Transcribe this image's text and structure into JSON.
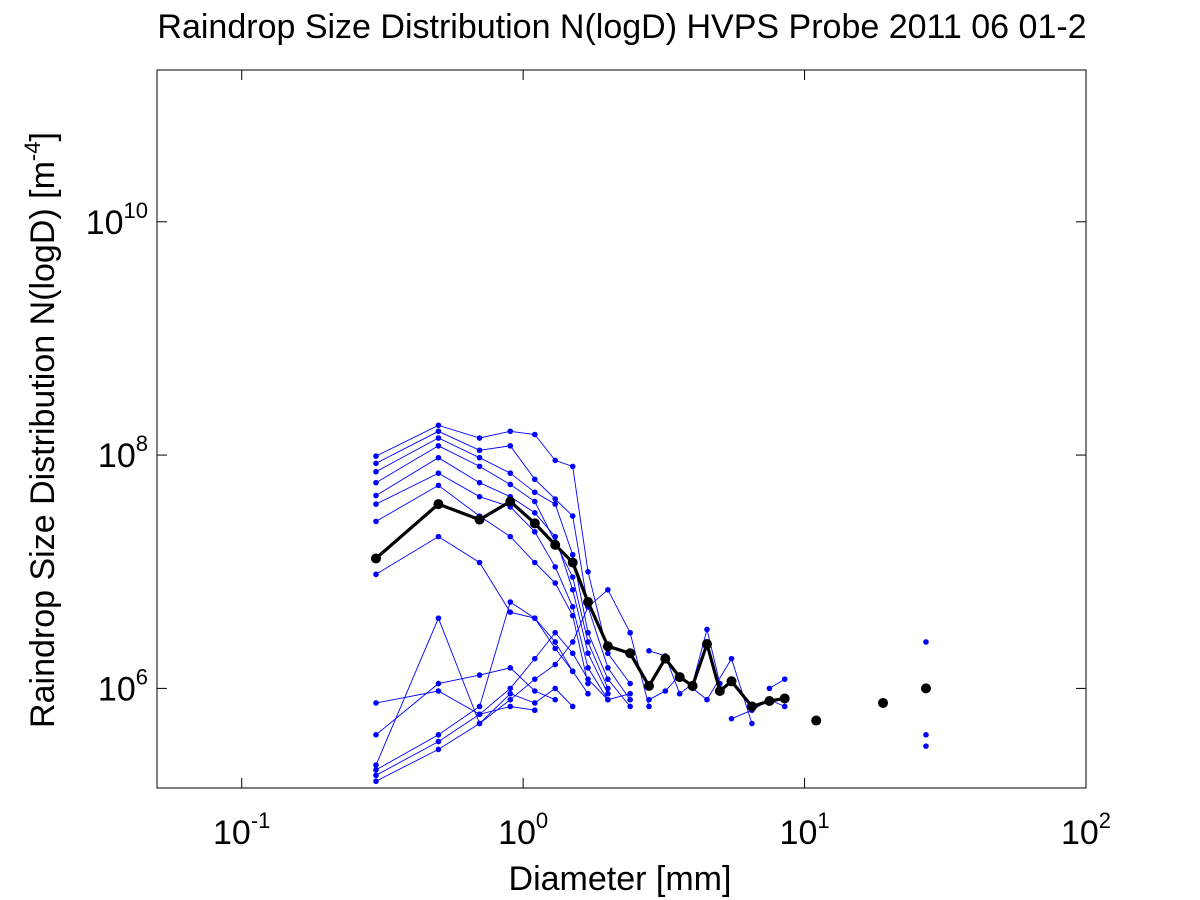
{
  "chart_data": {
    "type": "scatter",
    "title": "Raindrop Size Distribution N(logD) HVPS Probe 2011 06 01-2",
    "xlabel": "Diameter [mm]",
    "ylabel_main": "Raindrop Size Distribution N(logD) [m",
    "ylabel_sup": "-4",
    "ylabel_tail": "]",
    "x_scale": "log",
    "y_scale": "log",
    "xlim": [
      0.05,
      100
    ],
    "ylim": [
      140000,
      200000000000
    ],
    "x_ticks": [
      0.1,
      1,
      10,
      100
    ],
    "x_tick_labels": [
      {
        "base": "10",
        "exp": "-1"
      },
      {
        "base": "10",
        "exp": "0"
      },
      {
        "base": "10",
        "exp": "1"
      },
      {
        "base": "10",
        "exp": "2"
      }
    ],
    "y_ticks": [
      1000000,
      100000000,
      10000000000
    ],
    "y_tick_labels": [
      {
        "base": "10",
        "exp": "6"
      },
      {
        "base": "10",
        "exp": "8"
      },
      {
        "base": "10",
        "exp": "10"
      }
    ],
    "grid": false,
    "legend": "none",
    "colors": {
      "samples": "#0000ff",
      "mean": "#000000"
    },
    "series": [
      {
        "x": [
          0.3,
          0.5,
          0.7,
          0.9,
          1.1,
          1.3,
          1.5,
          1.7,
          2.0,
          2.4
        ],
        "y": [
          98000000,
          180000000,
          140000000,
          160000000,
          150000000,
          90000000,
          80000000,
          10000000,
          2000000,
          1100000
        ]
      },
      {
        "x": [
          0.3,
          0.5,
          0.7,
          0.9,
          1.1,
          1.3,
          1.5,
          1.7,
          2.0,
          2.4
        ],
        "y": [
          85000000,
          160000000,
          110000000,
          120000000,
          62000000,
          42000000,
          30000000,
          5000000,
          1500000,
          800000
        ]
      },
      {
        "x": [
          0.3,
          0.5,
          0.7,
          0.9,
          1.1,
          1.3,
          1.5,
          1.7,
          2.0,
          2.4
        ],
        "y": [
          72000000,
          140000000,
          95000000,
          70000000,
          48000000,
          38000000,
          14000000,
          3000000,
          1200000,
          700000
        ]
      },
      {
        "x": [
          0.3,
          0.5,
          0.7,
          0.9,
          1.1,
          1.3,
          1.5,
          1.7,
          2.0
        ],
        "y": [
          58000000,
          120000000,
          80000000,
          56000000,
          40000000,
          18000000,
          9000000,
          2500000,
          1000000
        ]
      },
      {
        "x": [
          0.3,
          0.5,
          0.7,
          0.9,
          1.1,
          1.3,
          1.5,
          1.7,
          2.0
        ],
        "y": [
          45000000,
          95000000,
          58000000,
          44000000,
          32000000,
          20000000,
          7000000,
          2000000,
          900000
        ]
      },
      {
        "x": [
          0.3,
          0.5,
          0.7,
          0.9,
          1.1,
          1.3,
          1.5,
          1.7,
          2.0
        ],
        "y": [
          38000000,
          70000000,
          44000000,
          36000000,
          22000000,
          11000000,
          5000000,
          1500000,
          800000
        ]
      },
      {
        "x": [
          0.3,
          0.5,
          0.7,
          0.9,
          1.1,
          1.3,
          1.5,
          1.7
        ],
        "y": [
          27000000,
          55000000,
          30000000,
          20000000,
          12000000,
          8000000,
          4200000,
          1100000
        ]
      },
      {
        "x": [
          0.3,
          0.5,
          0.7,
          0.9,
          1.1,
          1.3,
          1.5
        ],
        "y": [
          9500000,
          20000000,
          12000000,
          4500000,
          4000000,
          2200000,
          1400000
        ]
      },
      {
        "x": [
          0.3,
          0.5,
          0.7,
          0.9,
          1.1,
          1.3,
          1.5,
          1.7,
          2.0,
          2.4,
          2.8
        ],
        "y": [
          160000,
          300000,
          500000,
          800000,
          1200000,
          1600000,
          2500000,
          5000000,
          7000000,
          3000000,
          700000
        ]
      },
      {
        "x": [
          0.3,
          0.5,
          0.7,
          0.9,
          1.1,
          1.3,
          1.5,
          1.7,
          2.0,
          2.4
        ],
        "y": [
          180000,
          350000,
          600000,
          1000000,
          1800000,
          3000000,
          2000000,
          1200000,
          800000,
          900000
        ]
      },
      {
        "x": [
          0.3,
          0.5,
          0.7,
          0.9,
          1.1,
          1.3,
          1.5,
          1.7
        ],
        "y": [
          200000,
          400000,
          700000,
          5500000,
          4000000,
          2500000,
          1400000,
          900000
        ]
      },
      {
        "x": [
          0.3,
          0.5,
          0.7,
          0.9,
          1.1,
          1.3,
          1.5
        ],
        "y": [
          220000,
          4000000,
          500000,
          900000,
          750000,
          1000000,
          700000
        ]
      },
      {
        "x": [
          0.3,
          0.5,
          0.7,
          0.9,
          1.1,
          1.3
        ],
        "y": [
          400000,
          1100000,
          1300000,
          1500000,
          950000,
          800000
        ]
      },
      {
        "x": [
          0.3,
          0.5,
          0.7,
          0.9,
          1.1
        ],
        "y": [
          750000,
          950000,
          600000,
          700000,
          650000
        ]
      },
      {
        "x": [
          2.8,
          3.2,
          3.6,
          4.0,
          4.5,
          5.0
        ],
        "y": [
          2100000,
          1900000,
          900000,
          1100000,
          3200000,
          1100000
        ]
      },
      {
        "x": [
          2.8,
          3.2,
          3.6,
          4.0,
          4.5,
          5.5,
          6.5
        ],
        "y": [
          800000,
          950000,
          1300000,
          1000000,
          800000,
          1800000,
          500000
        ]
      },
      {
        "x": [
          5.5,
          6.5,
          7.5,
          8.5
        ],
        "y": [
          550000,
          650000,
          800000,
          700000
        ]
      },
      {
        "x": [
          7.5,
          8.5
        ],
        "y": [
          1000000,
          1200000
        ]
      },
      {
        "x": [
          27,
          27,
          27
        ],
        "y": [
          2500000,
          400000,
          320000
        ]
      }
    ],
    "mean": {
      "x": [
        0.3,
        0.5,
        0.7,
        0.9,
        1.1,
        1.3,
        1.5,
        1.7,
        2.0,
        2.4,
        2.8,
        3.2,
        3.6,
        4.0,
        4.5,
        5.0,
        5.5,
        6.5,
        7.5,
        8.5
      ],
      "y": [
        13000000,
        38000000,
        28000000,
        40000000,
        26000000,
        17000000,
        12000000,
        5500000,
        2300000,
        2000000,
        1050000,
        1800000,
        1250000,
        1050000,
        2400000,
        950000,
        1150000,
        700000,
        780000,
        820000
      ],
      "isolated_x": [
        11,
        19,
        27
      ],
      "isolated_y": [
        530000,
        750000,
        1000000
      ]
    }
  }
}
